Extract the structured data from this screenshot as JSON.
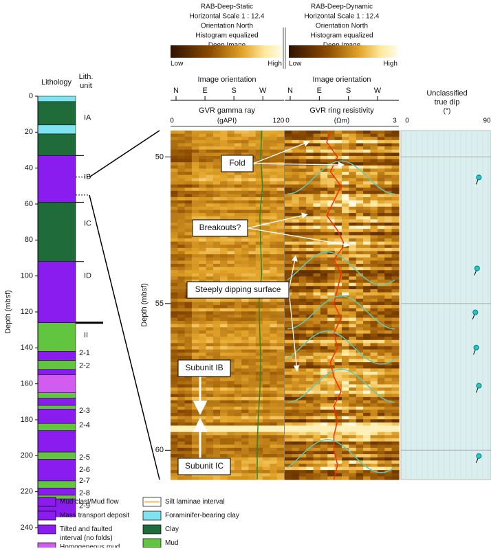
{
  "lithology": {
    "header": "Lithology",
    "unit_header": [
      "Lith.",
      "unit"
    ],
    "axis_label": "Depth (mbsf)",
    "ylim": [
      0,
      240
    ],
    "yticks": [
      0,
      20,
      40,
      60,
      80,
      100,
      120,
      140,
      160,
      180,
      200,
      220,
      240
    ],
    "intervals": [
      {
        "top": 0,
        "bottom": 3,
        "color": "#7fe3f2"
      },
      {
        "top": 3,
        "bottom": 16,
        "color": "#1f6b3a"
      },
      {
        "top": 16,
        "bottom": 21,
        "color": "#7fe3f2"
      },
      {
        "top": 21,
        "bottom": 33,
        "color": "#1f6b3a"
      },
      {
        "top": 33,
        "bottom": 59,
        "color": "#8a1cf0"
      },
      {
        "top": 59,
        "bottom": 92,
        "color": "#1f6b3a"
      },
      {
        "top": 92,
        "bottom": 126,
        "color": "#8a1cf0"
      },
      {
        "top": 126,
        "bottom": 142,
        "color": "#62c540"
      },
      {
        "top": 142,
        "bottom": 147,
        "color": "#8a1cf0"
      },
      {
        "top": 147,
        "bottom": 152,
        "color": "#62c540"
      },
      {
        "top": 152,
        "bottom": 155,
        "color": "#8a1cf0"
      },
      {
        "top": 155,
        "bottom": 165,
        "color": "#d25cf0"
      },
      {
        "top": 165,
        "bottom": 168,
        "color": "#62c540"
      },
      {
        "top": 168,
        "bottom": 172,
        "color": "#8a1cf0"
      },
      {
        "top": 172,
        "bottom": 174,
        "color": "#62c540"
      },
      {
        "top": 174,
        "bottom": 182,
        "color": "#8a1cf0"
      },
      {
        "top": 182,
        "bottom": 186,
        "color": "#62c540"
      },
      {
        "top": 186,
        "bottom": 198,
        "color": "#8a1cf0"
      },
      {
        "top": 198,
        "bottom": 202,
        "color": "#62c540"
      },
      {
        "top": 202,
        "bottom": 214,
        "color": "#8a1cf0"
      },
      {
        "top": 214,
        "bottom": 218,
        "color": "#62c540"
      },
      {
        "top": 218,
        "bottom": 222,
        "color": "#8a1cf0"
      },
      {
        "top": 222,
        "bottom": 224,
        "color": "#62c540"
      },
      {
        "top": 224,
        "bottom": 234,
        "color": "#8a1cf0"
      }
    ],
    "boundaries": [
      33,
      59,
      92,
      126
    ],
    "units": [
      {
        "label": "IA",
        "depth": 12
      },
      {
        "label": "IB",
        "depth": 45
      },
      {
        "label": "IC",
        "depth": 71
      },
      {
        "label": "ID",
        "depth": 100
      },
      {
        "label": "II",
        "depth": 133
      },
      {
        "label": "2-1",
        "depth": 143
      },
      {
        "label": "2-2",
        "depth": 150
      },
      {
        "label": "2-3",
        "depth": 175
      },
      {
        "label": "2-4",
        "depth": 183
      },
      {
        "label": "2-5",
        "depth": 201
      },
      {
        "label": "2-6",
        "depth": 208
      },
      {
        "label": "2-7",
        "depth": 214
      },
      {
        "label": "2-8",
        "depth": 221
      },
      {
        "label": "2-9",
        "depth": 228
      }
    ]
  },
  "images": {
    "static_title": [
      "RAB-Deep-Static",
      "Horizontal Scale 1 : 12.4",
      "Orientation North",
      "Histogram equalized",
      "Deep Image"
    ],
    "dynamic_title": [
      "RAB-Deep-Dynamic",
      "Horizontal Scale 1 : 12.4",
      "Orientation North",
      "Histogram equalized",
      "Deep Image"
    ],
    "low": "Low",
    "high": "High",
    "orientation_label": "Image orientation",
    "orientation": [
      "N",
      "E",
      "S",
      "W"
    ],
    "axis_label": "Depth (mbsf)",
    "ylim": [
      49.1,
      61
    ],
    "yticks": [
      50,
      55,
      60
    ],
    "gamma": {
      "title": "GVR gamma ray",
      "unit": "(gAPI)",
      "xlim": [
        0,
        120
      ],
      "xticks": [
        0,
        120
      ],
      "color": "#2a8a2a",
      "depth": [
        49.1,
        50,
        51,
        52,
        53,
        54,
        55,
        56,
        57,
        58,
        59,
        60,
        61
      ],
      "values": [
        101,
        100,
        102,
        99,
        100,
        101,
        98,
        99,
        100,
        99,
        97,
        96,
        96
      ]
    },
    "resistivity": {
      "title": "GVR ring resistivity",
      "unit": "(Ωm)",
      "xlim": [
        0,
        3
      ],
      "xticks": [
        0,
        3
      ],
      "color": "#ff2a00",
      "depth": [
        49.1,
        49.5,
        50,
        50.5,
        51,
        51.5,
        52,
        52.5,
        53,
        53.5,
        54,
        54.5,
        55,
        55.5,
        56,
        56.5,
        57,
        57.5,
        58,
        58.5,
        59,
        59.5,
        60,
        60.5,
        61
      ],
      "values": [
        1.2,
        1.1,
        1.4,
        1.2,
        1.5,
        1.3,
        1.1,
        1.4,
        1.6,
        1.3,
        1.5,
        1.4,
        1.3,
        1.5,
        1.3,
        1.4,
        1.2,
        1.3,
        1.5,
        1.3,
        1.4,
        1.3,
        1.3,
        1.4,
        1.3
      ]
    },
    "dip": {
      "title": [
        "Unclassified",
        "true dip"
      ],
      "unit": "(°)",
      "xlim": [
        0,
        90
      ],
      "xticks": [
        0,
        90
      ],
      "color": "#27c4c9",
      "depth": [
        50.7,
        53.8,
        55.3,
        56.5,
        57.8,
        60.2
      ],
      "values": [
        81,
        79,
        77,
        78,
        81,
        81
      ]
    },
    "annotations": [
      "Fold",
      "Breakouts?",
      "Steeply dipping surface",
      "Subunit IB",
      "Subunit IC"
    ]
  },
  "legend": [
    {
      "label": [
        "Mud clast/Mud flow"
      ],
      "color": "#8a1cf0"
    },
    {
      "label": [
        "Mass transport deposit"
      ],
      "color": "#8a1cf0"
    },
    {
      "label": [
        "Tilted and faulted",
        "interval (no folds)"
      ],
      "color": "#8a1cf0"
    },
    {
      "label": [
        "Homogeneous mud"
      ],
      "color": "#d25cf0"
    },
    {
      "label": [
        "Silt laminae interval"
      ],
      "color": "#ffffff"
    },
    {
      "label": [
        "Foraminifer-bearing clay"
      ],
      "color": "#7fe3f2"
    },
    {
      "label": [
        "Clay"
      ],
      "color": "#1f6b3a"
    },
    {
      "label": [
        "Mud"
      ],
      "color": "#62c540"
    }
  ]
}
